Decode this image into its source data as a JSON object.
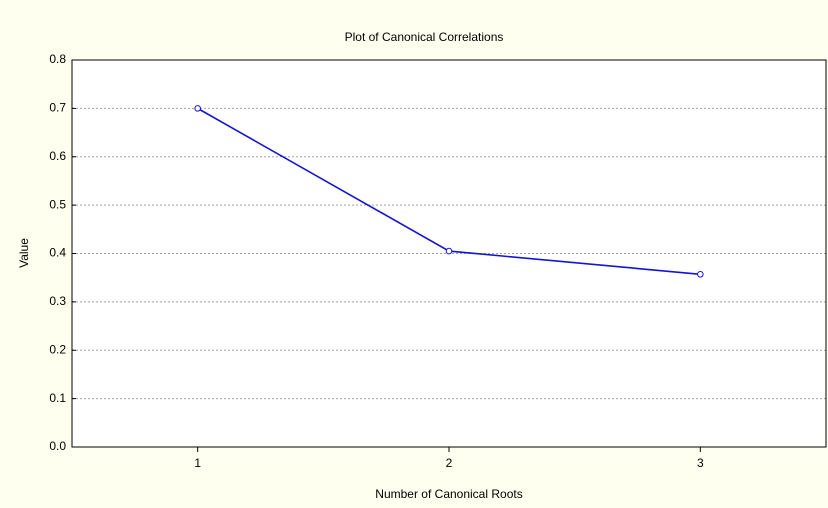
{
  "chart_data": {
    "type": "line",
    "title": "Plot of Canonical Correlations",
    "xlabel": "Number of Canonical Roots",
    "ylabel": "Value",
    "x": [
      1,
      2,
      3
    ],
    "series": [
      {
        "name": "Value",
        "color": "#1414d2",
        "values": [
          0.7,
          0.405,
          0.357
        ]
      }
    ],
    "xlim": [
      0.5,
      3.5
    ],
    "xticks": [
      1,
      2,
      3
    ],
    "ylim": [
      0,
      0.8
    ],
    "yticks": [
      {
        "value": 0,
        "label": "0.0"
      },
      0.1,
      0.2,
      0.3,
      0.4,
      0.5,
      0.6,
      0.7,
      0.8
    ],
    "grid": true
  }
}
